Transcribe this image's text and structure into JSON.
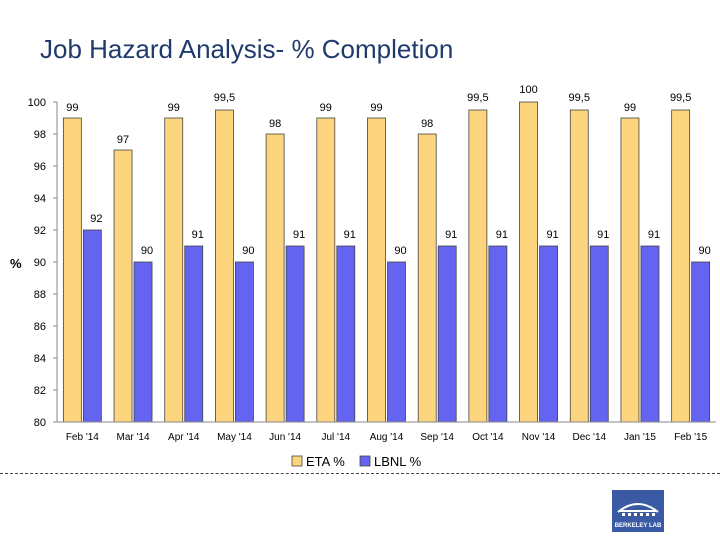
{
  "chart_data": {
    "type": "bar",
    "title": "Job Hazard Analysis- % Completion",
    "xlabel": "",
    "ylabel": "%",
    "ylim": [
      80,
      100
    ],
    "yticks": [
      "80",
      "82",
      "84",
      "86",
      "88",
      "90",
      "92",
      "94",
      "96",
      "98",
      "100"
    ],
    "categories": [
      "Feb '14",
      "Mar '14",
      "Apr '14",
      "May '14",
      "Jun '14",
      "Jul '14",
      "Aug '14",
      "Sep '14",
      "Oct '14",
      "Nov '14",
      "Dec '14",
      "Jan '15",
      "Feb '15"
    ],
    "series": [
      {
        "name": "ETA %",
        "color": "#fcd57e",
        "values": [
          99,
          97,
          99,
          99.5,
          98,
          99,
          99,
          98,
          99.5,
          100,
          99.5,
          99,
          99.5
        ],
        "labels": [
          "99",
          "97",
          "99",
          "99,5",
          "98",
          "99",
          "99",
          "98",
          "99,5",
          "100",
          "99,5",
          "99",
          "99,5"
        ]
      },
      {
        "name": "LBNL %",
        "color": "#6464f0",
        "values": [
          92,
          90,
          91,
          90,
          91,
          91,
          90,
          91,
          91,
          91,
          91,
          91,
          90
        ],
        "labels": [
          "92",
          "90",
          "91",
          "90",
          "91",
          "91",
          "90",
          "91",
          "91",
          "91",
          "91",
          "91",
          "90"
        ]
      }
    ],
    "legend": "bottom-center"
  },
  "logo": {
    "text": "BERKELEY LAB"
  }
}
